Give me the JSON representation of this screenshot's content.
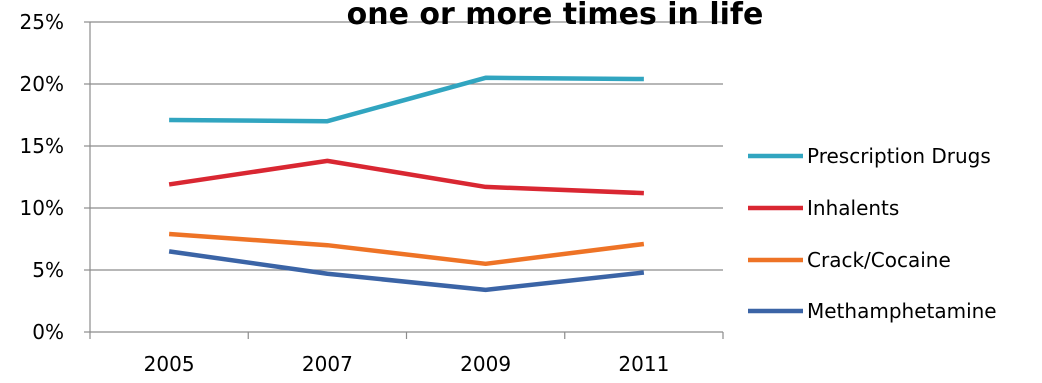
{
  "chart_data": {
    "type": "line",
    "title": "one or more times in life",
    "categories": [
      "2005",
      "2007",
      "2009",
      "2011"
    ],
    "ylim": [
      0,
      25
    ],
    "yticks": [
      0,
      5,
      10,
      15,
      20,
      25
    ],
    "ytick_labels": [
      "0%",
      "5%",
      "10%",
      "15%",
      "20%",
      "25%"
    ],
    "grid": true,
    "legend_placement": "right",
    "series": [
      {
        "name": "Prescription Drugs",
        "color": "#31a5c0",
        "values": [
          17.1,
          17.0,
          20.5,
          20.4
        ]
      },
      {
        "name": "Inhalents",
        "color": "#d92732",
        "values": [
          11.9,
          13.8,
          11.7,
          11.2
        ]
      },
      {
        "name": "Crack/Cocaine",
        "color": "#ee7326",
        "values": [
          7.9,
          7.0,
          5.5,
          7.1
        ]
      },
      {
        "name": "Methamphetamine",
        "color": "#3b64a6",
        "values": [
          6.5,
          4.7,
          3.4,
          4.8
        ]
      }
    ]
  }
}
